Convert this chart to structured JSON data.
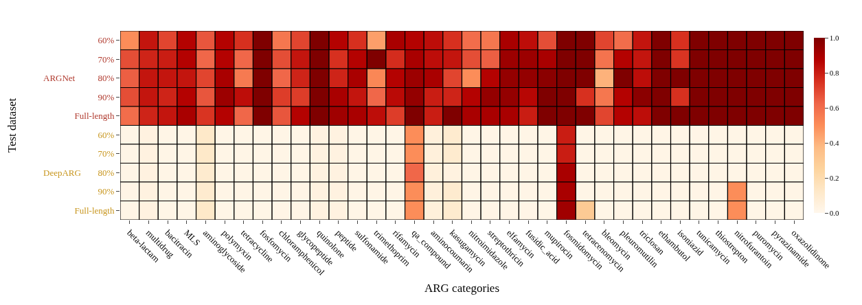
{
  "chart_data": {
    "type": "heatmap",
    "xlabel": "ARG categories",
    "ylabel": "Test dataset",
    "categories": [
      "beta-lactam",
      "multidrug",
      "bacitracin",
      "MLS",
      "aminoglycoside",
      "polymyxin",
      "tetracycline",
      "fosfomycin",
      "chloramphenicol",
      "glycopeptide",
      "quinolone",
      "peptide",
      "sulfonamide",
      "trimethoprim",
      "rifamycin",
      "qa_compound",
      "aminocoumarin",
      "kasugamycin",
      "nitroimidazole",
      "streptothricin",
      "elfamycin",
      "fusidic_acid",
      "mupirocin",
      "fosmidomycin",
      "tetracenomycin",
      "bleomycin",
      "pleuromutilin",
      "triclosan",
      "ethambutol",
      "isoniazid",
      "tunicamycin",
      "thiostrepton",
      "nitrofurantoin",
      "puromycin",
      "pyrazinamide",
      "oxazolidinone"
    ],
    "y_categories": [
      "60%",
      "70%",
      "80%",
      "90%",
      "Full-length",
      "60%",
      "70%",
      "80%",
      "90%",
      "Full-length"
    ],
    "annotations": [
      "ARGNet",
      "DeepARG"
    ],
    "cells": [
      [
        0.5,
        0.82,
        0.7,
        0.87,
        0.66,
        0.87,
        0.75,
        1.0,
        0.57,
        0.7,
        1.0,
        0.87,
        0.75,
        0.45,
        0.9,
        0.87,
        0.84,
        0.75,
        0.6,
        0.57,
        0.9,
        0.84,
        0.68,
        1.0,
        1.0,
        0.7,
        0.6,
        0.82,
        1.0,
        0.75,
        1.0,
        1.0,
        1.0,
        1.0,
        1.0,
        1.0
      ],
      [
        0.68,
        0.78,
        0.8,
        0.87,
        0.62,
        0.87,
        0.62,
        1.0,
        0.68,
        0.82,
        1.0,
        0.75,
        0.87,
        1.0,
        0.76,
        0.9,
        0.84,
        0.82,
        0.68,
        0.64,
        0.93,
        0.93,
        0.9,
        1.0,
        1.0,
        0.58,
        0.87,
        0.82,
        1.0,
        0.74,
        1.0,
        1.0,
        1.0,
        1.0,
        1.0,
        1.0
      ],
      [
        0.64,
        0.82,
        0.82,
        0.82,
        0.7,
        0.9,
        0.56,
        1.0,
        0.62,
        0.78,
        1.0,
        0.78,
        0.9,
        0.52,
        0.87,
        0.93,
        0.9,
        0.7,
        0.5,
        0.87,
        0.95,
        0.95,
        0.97,
        1.0,
        1.0,
        0.4,
        1.0,
        0.84,
        1.0,
        1.0,
        1.0,
        1.0,
        1.0,
        1.0,
        1.0,
        1.0
      ],
      [
        0.68,
        0.82,
        0.78,
        0.87,
        0.66,
        0.93,
        0.84,
        1.0,
        0.72,
        0.72,
        1.0,
        0.9,
        0.82,
        0.62,
        0.85,
        0.95,
        0.8,
        0.78,
        0.87,
        0.95,
        0.95,
        0.86,
        1.0,
        1.0,
        0.75,
        0.57,
        0.87,
        0.97,
        1.0,
        0.75,
        1.0,
        1.0,
        1.0,
        1.0,
        1.0,
        1.0
      ],
      [
        0.6,
        0.78,
        0.82,
        0.9,
        0.74,
        0.87,
        0.62,
        1.0,
        0.66,
        0.87,
        1.0,
        0.92,
        0.9,
        0.84,
        0.72,
        1.0,
        0.8,
        1.0,
        0.9,
        0.9,
        0.9,
        0.8,
        1.0,
        1.0,
        1.0,
        0.7,
        0.87,
        0.84,
        1.0,
        1.0,
        1.0,
        1.0,
        1.0,
        1.0,
        1.0,
        1.0
      ],
      [
        0.02,
        0.04,
        0.02,
        0.02,
        0.12,
        0.02,
        0.02,
        0.02,
        0.02,
        0.02,
        0.04,
        0.04,
        0.02,
        0.02,
        0.02,
        0.5,
        0.06,
        0.1,
        0.02,
        0.02,
        0.02,
        0.02,
        0.02,
        0.8,
        0.02,
        0.02,
        0.02,
        0.02,
        0.02,
        0.02,
        0.02,
        0.02,
        0.02,
        0.02,
        0.02,
        0.02
      ],
      [
        0.02,
        0.04,
        0.02,
        0.02,
        0.12,
        0.02,
        0.02,
        0.02,
        0.02,
        0.02,
        0.04,
        0.04,
        0.02,
        0.02,
        0.02,
        0.5,
        0.06,
        0.1,
        0.02,
        0.02,
        0.02,
        0.02,
        0.02,
        0.8,
        0.02,
        0.02,
        0.02,
        0.02,
        0.02,
        0.02,
        0.02,
        0.02,
        0.02,
        0.02,
        0.02,
        0.02
      ],
      [
        0.02,
        0.04,
        0.02,
        0.02,
        0.1,
        0.02,
        0.02,
        0.02,
        0.02,
        0.02,
        0.04,
        0.04,
        0.02,
        0.02,
        0.02,
        0.62,
        0.06,
        0.04,
        0.02,
        0.02,
        0.02,
        0.02,
        0.02,
        0.9,
        0.02,
        0.02,
        0.02,
        0.02,
        0.02,
        0.02,
        0.02,
        0.02,
        0.02,
        0.02,
        0.02,
        0.02
      ],
      [
        0.02,
        0.04,
        0.02,
        0.02,
        0.1,
        0.02,
        0.02,
        0.02,
        0.02,
        0.02,
        0.04,
        0.04,
        0.02,
        0.02,
        0.02,
        0.5,
        0.06,
        0.1,
        0.02,
        0.02,
        0.02,
        0.02,
        0.02,
        0.9,
        0.02,
        0.02,
        0.02,
        0.02,
        0.02,
        0.02,
        0.02,
        0.02,
        0.5,
        0.02,
        0.02,
        0.02
      ],
      [
        0.02,
        0.04,
        0.02,
        0.02,
        0.12,
        0.02,
        0.02,
        0.02,
        0.02,
        0.02,
        0.04,
        0.04,
        0.02,
        0.02,
        0.02,
        0.5,
        0.06,
        0.1,
        0.02,
        0.02,
        0.02,
        0.02,
        0.02,
        0.92,
        0.3,
        0.02,
        0.02,
        0.02,
        0.02,
        0.02,
        0.02,
        0.02,
        0.5,
        0.02,
        0.02,
        0.02
      ]
    ],
    "clim": [
      0,
      1
    ],
    "cticks": [
      {
        "value": 0,
        "label": "0.0"
      },
      {
        "value": 0.2,
        "label": "0.2"
      },
      {
        "value": 0.4,
        "label": "0.4"
      },
      {
        "value": 0.6,
        "label": "0.6"
      },
      {
        "value": 0.8,
        "label": "0.8"
      },
      {
        "value": 1,
        "label": "1.0"
      }
    ]
  }
}
